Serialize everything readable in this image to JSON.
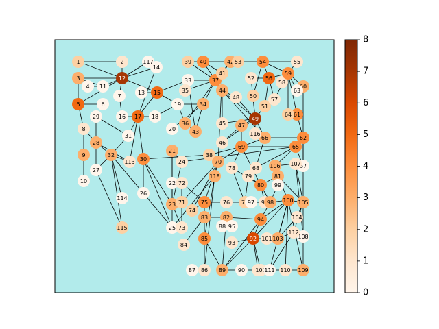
{
  "colorbar": {
    "min": 0,
    "max": 8,
    "ticks": [
      "0",
      "1",
      "2",
      "3",
      "4",
      "5",
      "6",
      "7",
      "8"
    ],
    "colormap": "Oranges"
  },
  "plot_background": "#b2ebeb",
  "graph": {
    "nodes": [
      {
        "id": "1",
        "degree": 2
      },
      {
        "id": "2",
        "degree": 1
      },
      {
        "id": "3",
        "degree": 3
      },
      {
        "id": "4",
        "degree": 0
      },
      {
        "id": "5",
        "degree": 5
      },
      {
        "id": "6",
        "degree": 0
      },
      {
        "id": "7",
        "degree": 0
      },
      {
        "id": "8",
        "degree": 1
      },
      {
        "id": "9",
        "degree": 3
      },
      {
        "id": "10",
        "degree": 0
      },
      {
        "id": "11",
        "degree": 0
      },
      {
        "id": "12",
        "degree": 7
      },
      {
        "id": "13",
        "degree": 0
      },
      {
        "id": "14",
        "degree": 0
      },
      {
        "id": "15",
        "degree": 5
      },
      {
        "id": "16",
        "degree": 0
      },
      {
        "id": "17",
        "degree": 5
      },
      {
        "id": "18",
        "degree": 0
      },
      {
        "id": "19",
        "degree": 0
      },
      {
        "id": "20",
        "degree": 0
      },
      {
        "id": "21",
        "degree": 3
      },
      {
        "id": "22",
        "degree": 0
      },
      {
        "id": "23",
        "degree": 3
      },
      {
        "id": "24",
        "degree": 1
      },
      {
        "id": "25",
        "degree": 0
      },
      {
        "id": "26",
        "degree": 0
      },
      {
        "id": "27",
        "degree": 0
      },
      {
        "id": "28",
        "degree": 3
      },
      {
        "id": "29",
        "degree": 0
      },
      {
        "id": "30",
        "degree": 4
      },
      {
        "id": "31",
        "degree": 0
      },
      {
        "id": "32",
        "degree": 3
      },
      {
        "id": "33",
        "degree": 0
      },
      {
        "id": "34",
        "degree": 3
      },
      {
        "id": "35",
        "degree": 1
      },
      {
        "id": "36",
        "degree": 3
      },
      {
        "id": "37",
        "degree": 4
      },
      {
        "id": "38",
        "degree": 2
      },
      {
        "id": "39",
        "degree": 2
      },
      {
        "id": "40",
        "degree": 4
      },
      {
        "id": "41",
        "degree": 2
      },
      {
        "id": "42",
        "degree": 3
      },
      {
        "id": "43",
        "degree": 3
      },
      {
        "id": "44",
        "degree": 3
      },
      {
        "id": "45",
        "degree": 1
      },
      {
        "id": "46",
        "degree": 1
      },
      {
        "id": "47",
        "degree": 3
      },
      {
        "id": "48",
        "degree": 1
      },
      {
        "id": "49",
        "degree": 7
      },
      {
        "id": "50",
        "degree": 2
      },
      {
        "id": "51",
        "degree": 2
      },
      {
        "id": "52",
        "degree": 1
      },
      {
        "id": "53",
        "degree": 2
      },
      {
        "id": "54",
        "degree": 4
      },
      {
        "id": "55",
        "degree": 1
      },
      {
        "id": "56",
        "degree": 5
      },
      {
        "id": "57",
        "degree": 1
      },
      {
        "id": "58",
        "degree": 1
      },
      {
        "id": "59",
        "degree": 4
      },
      {
        "id": "60",
        "degree": 3
      },
      {
        "id": "61",
        "degree": 4
      },
      {
        "id": "62",
        "degree": 4
      },
      {
        "id": "63",
        "degree": 0
      },
      {
        "id": "64",
        "degree": 2
      },
      {
        "id": "65",
        "degree": 4
      },
      {
        "id": "66",
        "degree": 3
      },
      {
        "id": "67",
        "degree": 0
      },
      {
        "id": "68",
        "degree": 1
      },
      {
        "id": "69",
        "degree": 4
      },
      {
        "id": "70",
        "degree": 3
      },
      {
        "id": "71",
        "degree": 2
      },
      {
        "id": "72",
        "degree": 1
      },
      {
        "id": "73",
        "degree": 1
      },
      {
        "id": "74",
        "degree": 2
      },
      {
        "id": "75",
        "degree": 4
      },
      {
        "id": "76",
        "degree": 1
      },
      {
        "id": "77",
        "degree": 2
      },
      {
        "id": "78",
        "degree": 1
      },
      {
        "id": "79",
        "degree": 1
      },
      {
        "id": "80",
        "degree": 4
      },
      {
        "id": "81",
        "degree": 3
      },
      {
        "id": "82",
        "degree": 3
      },
      {
        "id": "83",
        "degree": 3
      },
      {
        "id": "84",
        "degree": 1
      },
      {
        "id": "85",
        "degree": 4
      },
      {
        "id": "86",
        "degree": 1
      },
      {
        "id": "87",
        "degree": 0
      },
      {
        "id": "88",
        "degree": 0
      },
      {
        "id": "89",
        "degree": 3
      },
      {
        "id": "90",
        "degree": 0
      },
      {
        "id": "91",
        "degree": 1
      },
      {
        "id": "92",
        "degree": 6
      },
      {
        "id": "93",
        "degree": 1
      },
      {
        "id": "94",
        "degree": 4
      },
      {
        "id": "95",
        "degree": 0
      },
      {
        "id": "96",
        "degree": 1
      },
      {
        "id": "97",
        "degree": 0
      },
      {
        "id": "98",
        "degree": 3
      },
      {
        "id": "99",
        "degree": 0
      },
      {
        "id": "100",
        "degree": 4
      },
      {
        "id": "101",
        "degree": 1
      },
      {
        "id": "102",
        "degree": 1
      },
      {
        "id": "103",
        "degree": 3
      },
      {
        "id": "104",
        "degree": 1
      },
      {
        "id": "105",
        "degree": 3
      },
      {
        "id": "106",
        "degree": 3
      },
      {
        "id": "107",
        "degree": 1
      },
      {
        "id": "108",
        "degree": 0
      },
      {
        "id": "109",
        "degree": 3
      },
      {
        "id": "110",
        "degree": 1
      },
      {
        "id": "111",
        "degree": 0
      },
      {
        "id": "112",
        "degree": 1
      },
      {
        "id": "113",
        "degree": 1
      },
      {
        "id": "114",
        "degree": 0
      },
      {
        "id": "115",
        "degree": 2
      },
      {
        "id": "116",
        "degree": 1
      },
      {
        "id": "117",
        "degree": 0
      },
      {
        "id": "118",
        "degree": 3
      }
    ],
    "edges": [
      [
        "1",
        "2"
      ],
      [
        "1",
        "12"
      ],
      [
        "3",
        "12"
      ],
      [
        "3",
        "5"
      ],
      [
        "3",
        "11"
      ],
      [
        "4",
        "11"
      ],
      [
        "11",
        "12"
      ],
      [
        "5",
        "12"
      ],
      [
        "5",
        "6"
      ],
      [
        "5",
        "8"
      ],
      [
        "7",
        "12"
      ],
      [
        "7",
        "16"
      ],
      [
        "8",
        "9"
      ],
      [
        "8",
        "28"
      ],
      [
        "9",
        "10"
      ],
      [
        "12",
        "117"
      ],
      [
        "2",
        "12"
      ],
      [
        "12",
        "14"
      ],
      [
        "14",
        "17"
      ],
      [
        "12",
        "15"
      ],
      [
        "13",
        "15"
      ],
      [
        "15",
        "17"
      ],
      [
        "15",
        "19"
      ],
      [
        "15",
        "33"
      ],
      [
        "16",
        "17"
      ],
      [
        "17",
        "18"
      ],
      [
        "17",
        "30"
      ],
      [
        "17",
        "113"
      ],
      [
        "17",
        "31"
      ],
      [
        "18",
        "19"
      ],
      [
        "19",
        "34"
      ],
      [
        "19",
        "36"
      ],
      [
        "20",
        "34"
      ],
      [
        "21",
        "24"
      ],
      [
        "21",
        "22"
      ],
      [
        "21",
        "23"
      ],
      [
        "22",
        "25"
      ],
      [
        "23",
        "24"
      ],
      [
        "23",
        "30"
      ],
      [
        "24",
        "65"
      ],
      [
        "25",
        "30"
      ],
      [
        "25",
        "32"
      ],
      [
        "25",
        "118"
      ],
      [
        "26",
        "30"
      ],
      [
        "27",
        "28"
      ],
      [
        "27",
        "32"
      ],
      [
        "27",
        "115"
      ],
      [
        "28",
        "29"
      ],
      [
        "28",
        "32"
      ],
      [
        "28",
        "113"
      ],
      [
        "29",
        "31"
      ],
      [
        "30",
        "38"
      ],
      [
        "31",
        "32"
      ],
      [
        "32",
        "114"
      ],
      [
        "32",
        "115"
      ],
      [
        "32",
        "113"
      ],
      [
        "33",
        "37"
      ],
      [
        "33",
        "43"
      ],
      [
        "34",
        "37"
      ],
      [
        "34",
        "43"
      ],
      [
        "35",
        "37"
      ],
      [
        "36",
        "37"
      ],
      [
        "36",
        "43"
      ],
      [
        "37",
        "39"
      ],
      [
        "37",
        "40"
      ],
      [
        "37",
        "42"
      ],
      [
        "37",
        "44"
      ],
      [
        "38",
        "70"
      ],
      [
        "38",
        "69"
      ],
      [
        "39",
        "40"
      ],
      [
        "40",
        "41"
      ],
      [
        "40",
        "42"
      ],
      [
        "41",
        "42"
      ],
      [
        "42",
        "53"
      ],
      [
        "41",
        "70"
      ],
      [
        "44",
        "45"
      ],
      [
        "44",
        "49"
      ],
      [
        "44",
        "48"
      ],
      [
        "45",
        "49"
      ],
      [
        "46",
        "49"
      ],
      [
        "46",
        "47"
      ],
      [
        "47",
        "49"
      ],
      [
        "47",
        "69"
      ],
      [
        "48",
        "49"
      ],
      [
        "49",
        "50"
      ],
      [
        "49",
        "51"
      ],
      [
        "49",
        "52"
      ],
      [
        "49",
        "66"
      ],
      [
        "49",
        "116"
      ],
      [
        "50",
        "54"
      ],
      [
        "51",
        "56"
      ],
      [
        "52",
        "56"
      ],
      [
        "53",
        "54"
      ],
      [
        "54",
        "55"
      ],
      [
        "54",
        "56"
      ],
      [
        "54",
        "59"
      ],
      [
        "55",
        "59"
      ],
      [
        "56",
        "59"
      ],
      [
        "56",
        "57"
      ],
      [
        "57",
        "59"
      ],
      [
        "58",
        "59"
      ],
      [
        "59",
        "60"
      ],
      [
        "59",
        "61"
      ],
      [
        "59",
        "64"
      ],
      [
        "60",
        "62"
      ],
      [
        "60",
        "63"
      ],
      [
        "61",
        "62"
      ],
      [
        "61",
        "64"
      ],
      [
        "62",
        "65"
      ],
      [
        "62",
        "66"
      ],
      [
        "62",
        "67"
      ],
      [
        "62",
        "105"
      ],
      [
        "65",
        "69"
      ],
      [
        "65",
        "106"
      ],
      [
        "65",
        "68"
      ],
      [
        "66",
        "68"
      ],
      [
        "66",
        "69"
      ],
      [
        "69",
        "70"
      ],
      [
        "69",
        "78"
      ],
      [
        "69",
        "80"
      ],
      [
        "70",
        "71"
      ],
      [
        "70",
        "118"
      ],
      [
        "70",
        "74"
      ],
      [
        "70",
        "75"
      ],
      [
        "71",
        "72"
      ],
      [
        "71",
        "73"
      ],
      [
        "72",
        "75"
      ],
      [
        "74",
        "75"
      ],
      [
        "75",
        "76"
      ],
      [
        "75",
        "83"
      ],
      [
        "76",
        "77"
      ],
      [
        "77",
        "78"
      ],
      [
        "77",
        "79"
      ],
      [
        "78",
        "80"
      ],
      [
        "79",
        "80"
      ],
      [
        "80",
        "81"
      ],
      [
        "80",
        "96"
      ],
      [
        "80",
        "98"
      ],
      [
        "81",
        "106"
      ],
      [
        "81",
        "105"
      ],
      [
        "81",
        "100"
      ],
      [
        "82",
        "83"
      ],
      [
        "82",
        "94"
      ],
      [
        "82",
        "89"
      ],
      [
        "83",
        "84"
      ],
      [
        "83",
        "85"
      ],
      [
        "85",
        "86"
      ],
      [
        "85",
        "89"
      ],
      [
        "85",
        "118"
      ],
      [
        "86",
        "118"
      ],
      [
        "89",
        "90"
      ],
      [
        "89",
        "92"
      ],
      [
        "89",
        "94"
      ],
      [
        "90",
        "91"
      ],
      [
        "91",
        "92"
      ],
      [
        "92",
        "93"
      ],
      [
        "92",
        "94"
      ],
      [
        "92",
        "100"
      ],
      [
        "92",
        "101"
      ],
      [
        "92",
        "102"
      ],
      [
        "94",
        "98"
      ],
      [
        "94",
        "100"
      ],
      [
        "96",
        "97"
      ],
      [
        "97",
        "98"
      ],
      [
        "98",
        "99"
      ],
      [
        "98",
        "100"
      ],
      [
        "100",
        "103"
      ],
      [
        "100",
        "105"
      ],
      [
        "100",
        "109"
      ],
      [
        "100",
        "110"
      ],
      [
        "100",
        "111"
      ],
      [
        "101",
        "103"
      ],
      [
        "103",
        "104"
      ],
      [
        "103",
        "112"
      ],
      [
        "104",
        "105"
      ],
      [
        "105",
        "107"
      ],
      [
        "105",
        "108"
      ],
      [
        "106",
        "107"
      ],
      [
        "107",
        "108"
      ],
      [
        "108",
        "109"
      ],
      [
        "109",
        "110"
      ],
      [
        "110",
        "111"
      ],
      [
        "111",
        "112"
      ],
      [
        "112",
        "105"
      ],
      [
        "23",
        "71"
      ],
      [
        "23",
        "73"
      ],
      [
        "65",
        "67"
      ],
      [
        "44",
        "66"
      ],
      [
        "63",
        "59"
      ]
    ]
  }
}
